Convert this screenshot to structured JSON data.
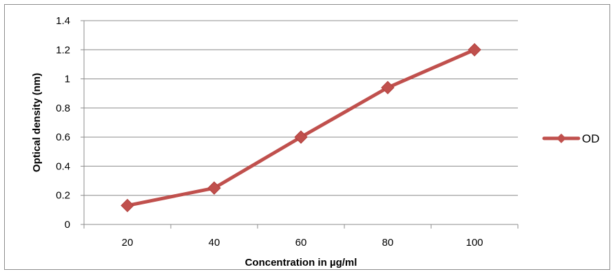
{
  "chart_data": {
    "type": "line",
    "title": "",
    "xlabel": "Concentration in µg/ml",
    "ylabel": "Optical density (nm)",
    "categories": [
      "20",
      "40",
      "60",
      "80",
      "100"
    ],
    "series": [
      {
        "name": "OD",
        "values": [
          0.13,
          0.25,
          0.6,
          0.94,
          1.2
        ],
        "color": "#c0504d",
        "marker": "diamond"
      }
    ],
    "ylim": [
      0,
      1.4
    ],
    "yticks": [
      "0",
      "0.2",
      "0.4",
      "0.6",
      "0.8",
      "1",
      "1.2",
      "1.4"
    ],
    "grid": "horizontal",
    "legend_position": "right"
  }
}
